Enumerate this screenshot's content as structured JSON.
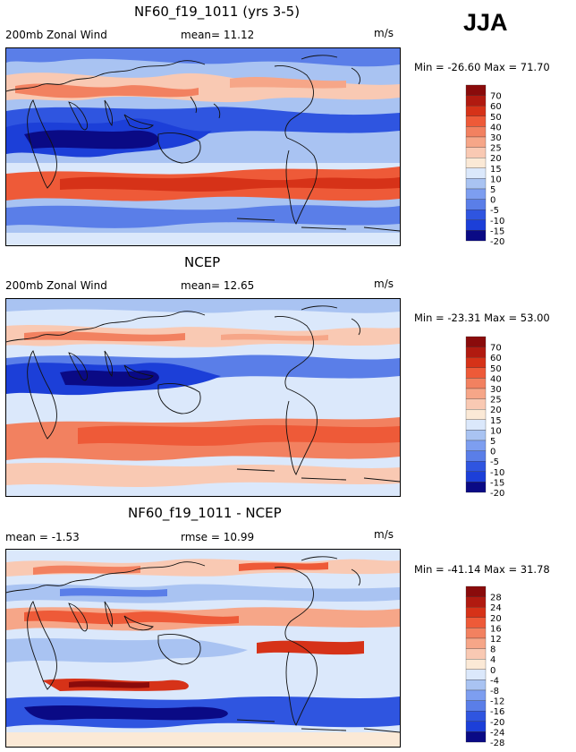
{
  "season": "JJA",
  "palette": {
    "deep_blue": "#0a0a85",
    "blue": "#1c3fd8",
    "mid_blue": "#5a7ee8",
    "light_blue": "#a9c3f2",
    "pale_blue": "#dbe8fb",
    "cream": "#fbe9d6",
    "peach": "#f7b89a",
    "orange": "#ee6a45",
    "red": "#d63218",
    "dark_red": "#8a0b0b",
    "coast": "#111111"
  },
  "panels": [
    {
      "title": "NF60_f19_1011 (yrs 3-5)",
      "left_text": "200mb Zonal Wind",
      "mid_text": "mean=  11.12",
      "units": "m/s",
      "minmax": "Min = -26.60 Max =  71.70",
      "colorbar": {
        "labels": [
          "70",
          "60",
          "50",
          "40",
          "30",
          "25",
          "20",
          "15",
          "10",
          "5",
          "0",
          "-5",
          "-10",
          "-15",
          "-20"
        ],
        "colors": [
          "#8a0b0b",
          "#b11a10",
          "#d63218",
          "#ee5a38",
          "#f28160",
          "#f6a688",
          "#f9c9b3",
          "#fbe9d6",
          "#dbe8fb",
          "#a9c3f2",
          "#7d9ef0",
          "#5a7ee8",
          "#2f55e0",
          "#1c3fd8",
          "#0a0a85"
        ]
      }
    },
    {
      "title": "NCEP",
      "left_text": "200mb Zonal Wind",
      "mid_text": "mean=  12.65",
      "units": "m/s",
      "minmax": "Min = -23.31 Max =  53.00",
      "colorbar": {
        "labels": [
          "70",
          "60",
          "50",
          "40",
          "30",
          "25",
          "20",
          "15",
          "10",
          "5",
          "0",
          "-5",
          "-10",
          "-15",
          "-20"
        ],
        "colors": [
          "#8a0b0b",
          "#b11a10",
          "#d63218",
          "#ee5a38",
          "#f28160",
          "#f6a688",
          "#f9c9b3",
          "#fbe9d6",
          "#dbe8fb",
          "#a9c3f2",
          "#7d9ef0",
          "#5a7ee8",
          "#2f55e0",
          "#1c3fd8",
          "#0a0a85"
        ]
      }
    },
    {
      "title": "NF60_f19_1011 - NCEP",
      "left_text": "mean =  -1.53",
      "mid_text": "rmse =  10.99",
      "units": "m/s",
      "minmax": "Min = -41.14 Max =  31.78",
      "colorbar": {
        "labels": [
          "28",
          "24",
          "20",
          "16",
          "12",
          "8",
          "4",
          "0",
          "-4",
          "-8",
          "-12",
          "-16",
          "-20",
          "-24",
          "-28"
        ],
        "colors": [
          "#8a0b0b",
          "#b11a10",
          "#d63218",
          "#ee5a38",
          "#f28160",
          "#f6a688",
          "#f9c9b3",
          "#fbe9d6",
          "#dbe8fb",
          "#a9c3f2",
          "#7d9ef0",
          "#5a7ee8",
          "#2f55e0",
          "#1c3fd8",
          "#0a0a85"
        ]
      }
    }
  ]
}
